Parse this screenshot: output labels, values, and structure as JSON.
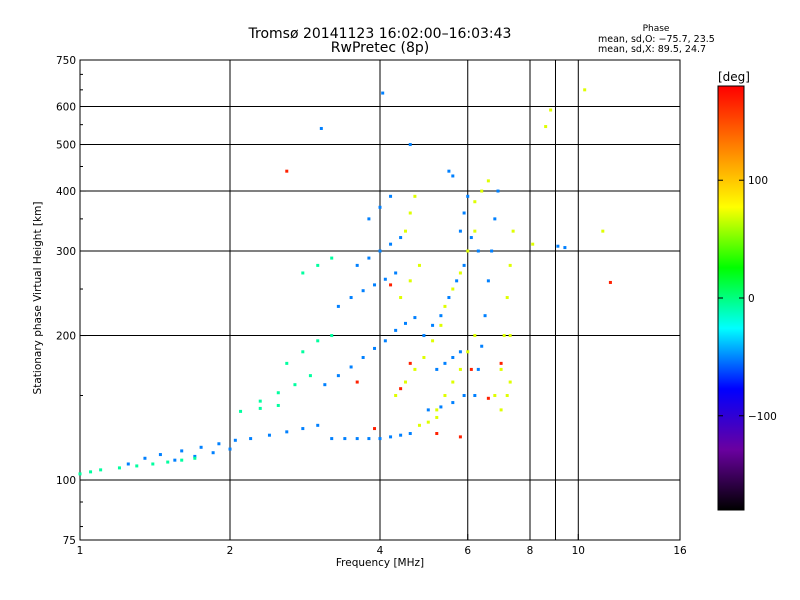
{
  "header": {
    "title_line1": "Tromsø 20141123 16:02:00–16:03:43",
    "title_line2": "RwPretec (8p)"
  },
  "phase_box": {
    "heading": "Phase",
    "line_o": "mean, sd,O: −75.7, 23.5",
    "line_x": "mean, sd,X:  89.5, 24.7"
  },
  "colorbar": {
    "unit": "[deg]",
    "ticks": [
      {
        "value": 100,
        "label": "100"
      },
      {
        "value": 0,
        "label": "0"
      },
      {
        "value": -100,
        "label": "−100"
      }
    ],
    "range": [
      -180,
      180
    ],
    "colors": [
      "#000000",
      "#6a00a0",
      "#0000ff",
      "#00ffff",
      "#00ff00",
      "#ffff00",
      "#ff8000",
      "#ff0000"
    ]
  },
  "chart_data": {
    "type": "scatter",
    "title": "Tromsø 20141123 16:02:00–16:03:43",
    "subtitle": "RwPretec (8p)",
    "xlabel": "Frequency [MHz]",
    "ylabel": "Stationary phase Virtual Height [km]",
    "xscale": "log",
    "yscale": "log",
    "xlim": [
      1,
      16
    ],
    "ylim": [
      75,
      750
    ],
    "grid": true,
    "x_ticks": [
      {
        "value": 1,
        "label": "1"
      },
      {
        "value": 2,
        "label": "2"
      },
      {
        "value": 4,
        "label": "4"
      },
      {
        "value": 6,
        "label": "6"
      },
      {
        "value": 8,
        "label": "8"
      },
      {
        "value": 10,
        "label": "10"
      },
      {
        "value": 16,
        "label": "16"
      }
    ],
    "x_grid": [
      2,
      4,
      6,
      8,
      9,
      10
    ],
    "y_ticks": [
      {
        "value": 750,
        "label": "750"
      },
      {
        "value": 600,
        "label": "600"
      },
      {
        "value": 500,
        "label": "500"
      },
      {
        "value": 400,
        "label": "400"
      },
      {
        "value": 300,
        "label": "300"
      },
      {
        "value": 200,
        "label": "200"
      },
      {
        "value": 100,
        "label": "100"
      },
      {
        "value": 75,
        "label": "75"
      }
    ],
    "y_grid": [
      600,
      500,
      400,
      300,
      200,
      100
    ],
    "series": [
      {
        "name": "O",
        "phase_deg": -100,
        "points": [
          [
            1.25,
            108
          ],
          [
            1.35,
            111
          ],
          [
            1.45,
            113
          ],
          [
            1.6,
            115
          ],
          [
            1.75,
            117
          ],
          [
            1.9,
            119
          ],
          [
            2.05,
            121
          ],
          [
            2.2,
            122
          ],
          [
            2.4,
            124
          ],
          [
            2.6,
            126
          ],
          [
            2.8,
            128
          ],
          [
            3.0,
            130
          ],
          [
            1.55,
            110
          ],
          [
            1.7,
            112
          ],
          [
            1.85,
            114
          ],
          [
            2.0,
            116
          ],
          [
            3.2,
            122
          ],
          [
            3.4,
            122
          ],
          [
            3.6,
            122
          ],
          [
            3.8,
            122
          ],
          [
            4.0,
            122
          ],
          [
            4.2,
            123
          ],
          [
            4.4,
            124
          ],
          [
            4.6,
            125
          ],
          [
            3.1,
            158
          ],
          [
            3.3,
            165
          ],
          [
            3.5,
            172
          ],
          [
            3.7,
            180
          ],
          [
            3.9,
            188
          ],
          [
            4.1,
            195
          ],
          [
            4.3,
            205
          ],
          [
            4.5,
            212
          ],
          [
            4.7,
            218
          ],
          [
            3.3,
            230
          ],
          [
            3.5,
            240
          ],
          [
            3.7,
            248
          ],
          [
            3.9,
            255
          ],
          [
            4.1,
            262
          ],
          [
            4.3,
            270
          ],
          [
            3.6,
            280
          ],
          [
            3.8,
            290
          ],
          [
            4.0,
            300
          ],
          [
            4.2,
            310
          ],
          [
            4.4,
            320
          ],
          [
            3.8,
            350
          ],
          [
            4.0,
            370
          ],
          [
            4.2,
            390
          ],
          [
            4.9,
            200
          ],
          [
            5.1,
            210
          ],
          [
            5.3,
            220
          ],
          [
            5.5,
            240
          ],
          [
            5.7,
            260
          ],
          [
            5.9,
            280
          ],
          [
            5.2,
            170
          ],
          [
            5.4,
            175
          ],
          [
            5.6,
            180
          ],
          [
            5.8,
            185
          ],
          [
            5.0,
            140
          ],
          [
            5.3,
            142
          ],
          [
            5.6,
            145
          ],
          [
            5.9,
            150
          ],
          [
            6.2,
            150
          ],
          [
            6.3,
            170
          ],
          [
            6.4,
            190
          ],
          [
            6.5,
            220
          ],
          [
            6.6,
            260
          ],
          [
            6.7,
            300
          ],
          [
            6.8,
            350
          ],
          [
            6.9,
            400
          ],
          [
            5.8,
            330
          ],
          [
            5.9,
            360
          ],
          [
            6.0,
            390
          ],
          [
            5.5,
            440
          ],
          [
            5.6,
            430
          ],
          [
            6.1,
            320
          ],
          [
            6.3,
            300
          ],
          [
            4.05,
            640
          ],
          [
            4.6,
            500
          ],
          [
            3.05,
            540
          ],
          [
            9.4,
            305
          ],
          [
            9.1,
            307
          ]
        ]
      },
      {
        "name": "X",
        "phase_deg": 90,
        "points": [
          [
            4.3,
            150
          ],
          [
            4.5,
            160
          ],
          [
            4.7,
            170
          ],
          [
            4.9,
            180
          ],
          [
            5.1,
            195
          ],
          [
            5.3,
            210
          ],
          [
            4.4,
            240
          ],
          [
            4.6,
            260
          ],
          [
            4.8,
            280
          ],
          [
            5.2,
            140
          ],
          [
            5.4,
            150
          ],
          [
            5.6,
            160
          ],
          [
            5.8,
            170
          ],
          [
            6.0,
            185
          ],
          [
            6.2,
            200
          ],
          [
            5.4,
            230
          ],
          [
            5.6,
            250
          ],
          [
            5.8,
            270
          ],
          [
            6.0,
            300
          ],
          [
            6.2,
            330
          ],
          [
            6.8,
            150
          ],
          [
            7.0,
            170
          ],
          [
            7.1,
            200
          ],
          [
            7.2,
            240
          ],
          [
            7.3,
            280
          ],
          [
            7.4,
            330
          ],
          [
            7.0,
            140
          ],
          [
            7.2,
            150
          ],
          [
            7.3,
            160
          ],
          [
            4.5,
            330
          ],
          [
            4.6,
            360
          ],
          [
            4.7,
            390
          ],
          [
            6.2,
            380
          ],
          [
            6.4,
            400
          ],
          [
            6.6,
            420
          ],
          [
            4.8,
            130
          ],
          [
            5.0,
            132
          ],
          [
            5.2,
            135
          ],
          [
            8.8,
            590
          ],
          [
            8.6,
            545
          ],
          [
            10.3,
            650
          ],
          [
            7.3,
            200
          ],
          [
            8.1,
            310
          ],
          [
            11.2,
            330
          ]
        ]
      },
      {
        "name": "X-cyan",
        "phase_deg": -30,
        "points": [
          [
            1.0,
            103
          ],
          [
            1.05,
            104
          ],
          [
            1.1,
            105
          ],
          [
            1.2,
            106
          ],
          [
            1.3,
            107
          ],
          [
            1.4,
            108
          ],
          [
            1.5,
            109
          ],
          [
            1.6,
            110
          ],
          [
            1.7,
            111
          ],
          [
            2.3,
            146
          ],
          [
            2.5,
            152
          ],
          [
            2.7,
            158
          ],
          [
            2.9,
            165
          ],
          [
            2.6,
            175
          ],
          [
            2.8,
            185
          ],
          [
            3.0,
            195
          ],
          [
            3.2,
            200
          ],
          [
            2.8,
            270
          ],
          [
            3.0,
            280
          ],
          [
            3.2,
            290
          ],
          [
            2.1,
            139
          ],
          [
            2.3,
            141
          ],
          [
            2.5,
            143
          ]
        ]
      },
      {
        "name": "O-red",
        "phase_deg": 170,
        "points": [
          [
            4.4,
            155
          ],
          [
            4.6,
            175
          ],
          [
            5.2,
            125
          ],
          [
            5.8,
            123
          ],
          [
            6.1,
            170
          ],
          [
            6.6,
            148
          ],
          [
            7.0,
            175
          ],
          [
            2.6,
            440
          ],
          [
            3.6,
            160
          ],
          [
            3.9,
            128
          ],
          [
            4.2,
            255
          ],
          [
            11.6,
            258
          ]
        ]
      }
    ]
  }
}
